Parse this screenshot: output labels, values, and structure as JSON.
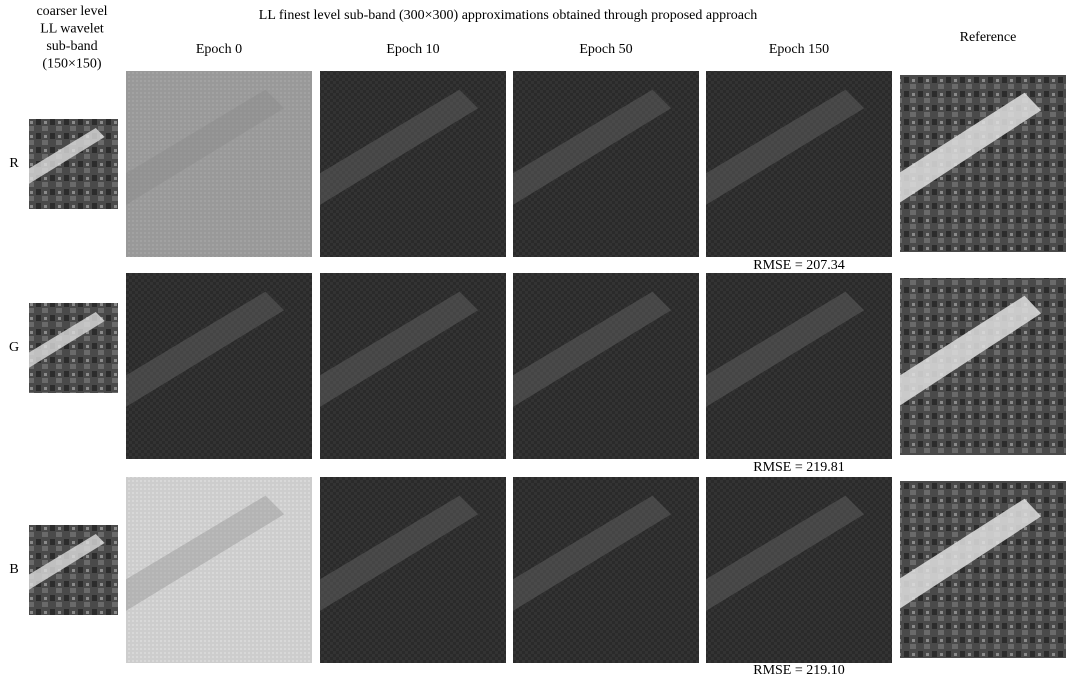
{
  "header": {
    "side_title": [
      "coarser level",
      "LL wavelet",
      "sub-band",
      "(150×150)"
    ],
    "title": "LL finest level sub-band (300×300) approximations obtained through proposed approach"
  },
  "columns": [
    "Epoch 0",
    "Epoch 10",
    "Epoch 50",
    "Epoch 150",
    "Reference"
  ],
  "rows": [
    {
      "label": "R",
      "rmse": "RMSE = 207.34"
    },
    {
      "label": "G",
      "rmse": "RMSE = 219.81"
    },
    {
      "label": "B",
      "rmse": "RMSE = 219.10"
    }
  ]
}
